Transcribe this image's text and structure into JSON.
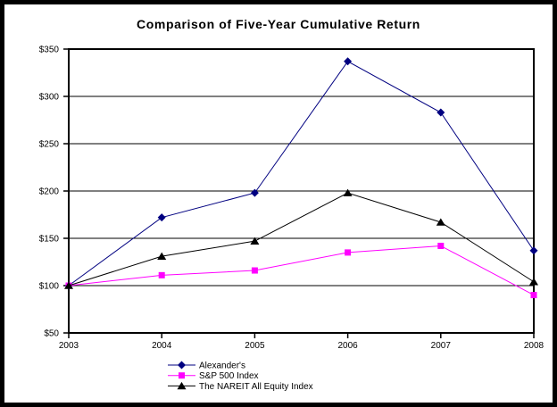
{
  "chart_data": {
    "type": "line",
    "title": "Comparison of Five-Year Cumulative Return",
    "xlabel": "",
    "ylabel": "",
    "x_labels": [
      "2003",
      "2004",
      "2005",
      "2006",
      "2007",
      "2008"
    ],
    "y_ticks": [
      50,
      100,
      150,
      200,
      250,
      300,
      350
    ],
    "y_tick_labels": [
      "$50",
      "$100",
      "$150",
      "$200",
      "$250",
      "$300",
      "$350"
    ],
    "ylim": [
      50,
      350
    ],
    "grid": "horizontal-only",
    "legend_position": "bottom-center",
    "series": [
      {
        "name": "Alexander's",
        "color": "#000080",
        "marker": "diamond",
        "values": [
          100,
          172,
          198,
          337,
          283,
          137
        ]
      },
      {
        "name": "S&P 500 Index",
        "color": "#FF00FF",
        "marker": "square",
        "values": [
          100,
          111,
          116,
          135,
          142,
          90
        ]
      },
      {
        "name": "The NAREIT All Equity Index",
        "color": "#000000",
        "marker": "triangle",
        "values": [
          100,
          131,
          147,
          198,
          167,
          104
        ]
      }
    ]
  },
  "frame": {
    "border_color": "#000000",
    "background": "#ffffff"
  }
}
